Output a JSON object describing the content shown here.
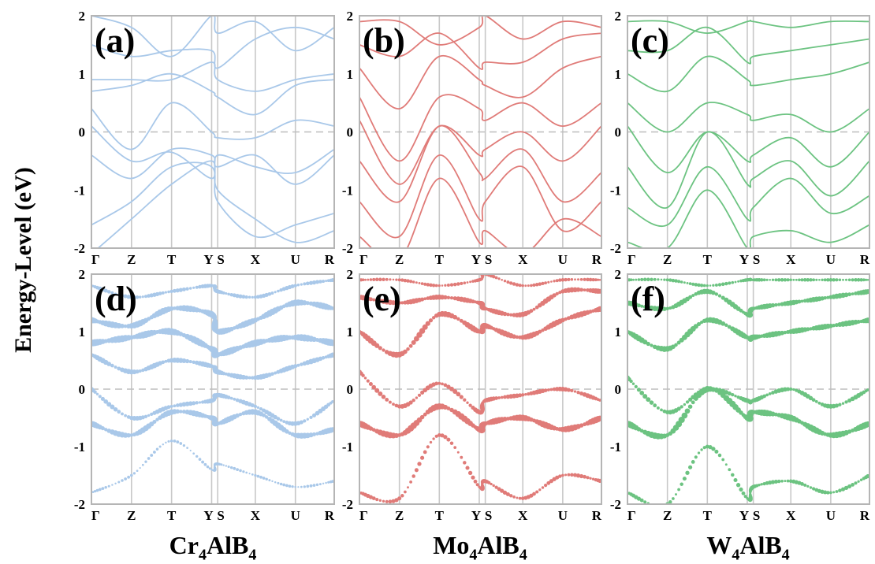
{
  "figure": {
    "ylabel": "Energy-Level (eV)"
  },
  "colors": {
    "Cr": "#a9c8e9",
    "Mo": "#e07b78",
    "W": "#6cc381",
    "fermi": "#bdbdbd",
    "kline": "#c8c8c8",
    "frame": "#b5b5b5"
  },
  "materials": [
    {
      "base": "Cr",
      "sub1": "4",
      "mid": "AlB",
      "sub2": "4"
    },
    {
      "base": "Mo",
      "sub1": "4",
      "mid": "AlB",
      "sub2": "4"
    },
    {
      "base": "W",
      "sub1": "4",
      "mid": "AlB",
      "sub2": "4"
    }
  ],
  "chart_data": [
    {
      "type": "line",
      "title": "(a)",
      "material": "Cr4AlB4",
      "style": "band",
      "color_key": "Cr",
      "x_ticks": [
        "Γ",
        "Z",
        "T",
        "Y",
        "S",
        "X",
        "U",
        "R"
      ],
      "y_ticks": [
        "2",
        "1",
        "0",
        "-1",
        "-2"
      ],
      "ylim": [
        -2,
        2
      ],
      "fermi_level": 0,
      "series": [
        {
          "values": [
            -2.1,
            -1.5,
            -0.9,
            -0.5,
            -1.0,
            -1.5,
            -1.9,
            -1.7
          ]
        },
        {
          "values": [
            -1.6,
            -1.2,
            -0.6,
            -0.6,
            -1.2,
            -1.8,
            -1.6,
            -1.4
          ]
        },
        {
          "values": [
            -0.4,
            -0.8,
            -0.3,
            -0.4,
            -0.6,
            -0.4,
            -0.9,
            -0.4
          ]
        },
        {
          "values": [
            0.1,
            -0.5,
            -0.35,
            -0.8,
            -0.4,
            -0.6,
            -0.7,
            -0.3
          ]
        },
        {
          "values": [
            0.4,
            -0.3,
            0.5,
            0.0,
            -0.1,
            -0.1,
            0.2,
            0.1
          ]
        },
        {
          "values": [
            0.7,
            0.8,
            1.0,
            0.7,
            0.6,
            0.3,
            0.8,
            0.9
          ]
        },
        {
          "values": [
            0.9,
            0.9,
            0.9,
            1.2,
            0.9,
            0.7,
            0.9,
            1.0
          ]
        },
        {
          "values": [
            1.5,
            1.3,
            1.4,
            1.4,
            1.1,
            1.6,
            1.8,
            1.6
          ]
        },
        {
          "values": [
            2.0,
            1.8,
            1.3,
            2.0,
            1.7,
            1.9,
            1.4,
            1.8
          ]
        }
      ]
    },
    {
      "type": "line",
      "title": "(b)",
      "material": "Mo4AlB4",
      "style": "band",
      "color_key": "Mo",
      "x_ticks": [
        "Γ",
        "Z",
        "T",
        "Y",
        "S",
        "X",
        "U",
        "R"
      ],
      "y_ticks": [
        "2",
        "1",
        "0",
        "-1",
        "-2"
      ],
      "ylim": [
        -2,
        2
      ],
      "fermi_level": 0,
      "series": [
        {
          "values": [
            -1.8,
            -2.2,
            -0.8,
            -1.9,
            -1.7,
            -2.1,
            -1.5,
            -1.8
          ]
        },
        {
          "values": [
            -1.2,
            -1.8,
            -0.4,
            -1.5,
            -1.2,
            -0.6,
            -1.7,
            -1.2
          ]
        },
        {
          "values": [
            -0.5,
            -1.2,
            0.1,
            -0.7,
            -0.8,
            -0.3,
            -1.2,
            -0.7
          ]
        },
        {
          "values": [
            0.2,
            -0.9,
            0.1,
            -0.4,
            -0.3,
            0.0,
            -0.5,
            0.1
          ]
        },
        {
          "values": [
            0.6,
            -0.5,
            0.6,
            0.4,
            0.2,
            0.5,
            0.1,
            0.5
          ]
        },
        {
          "values": [
            1.1,
            0.4,
            1.3,
            0.9,
            0.8,
            0.6,
            1.1,
            1.3
          ]
        },
        {
          "values": [
            1.5,
            1.3,
            1.7,
            1.1,
            1.2,
            1.2,
            1.6,
            1.7
          ]
        },
        {
          "values": [
            1.9,
            1.9,
            1.5,
            1.8,
            2.0,
            1.6,
            1.9,
            1.8
          ]
        }
      ]
    },
    {
      "type": "line",
      "title": "(c)",
      "material": "W4AlB4",
      "style": "band",
      "color_key": "W",
      "x_ticks": [
        "Γ",
        "Z",
        "T",
        "Y",
        "S",
        "X",
        "U",
        "R"
      ],
      "y_ticks": [
        "2",
        "1",
        "0",
        "-1",
        "-2"
      ],
      "ylim": [
        -2,
        2
      ],
      "fermi_level": 0,
      "series": [
        {
          "values": [
            -1.9,
            -2.0,
            -1.0,
            -2.0,
            -1.8,
            -1.7,
            -1.9,
            -1.6
          ]
        },
        {
          "values": [
            -1.3,
            -1.6,
            -0.6,
            -1.5,
            -1.3,
            -0.8,
            -1.4,
            -1.1
          ]
        },
        {
          "values": [
            -0.6,
            -1.3,
            0.0,
            -0.9,
            -0.8,
            -0.5,
            -1.1,
            -0.5
          ]
        },
        {
          "values": [
            0.1,
            -0.7,
            0.0,
            -0.5,
            -0.4,
            -0.1,
            -0.6,
            0.0
          ]
        },
        {
          "values": [
            0.5,
            0.0,
            0.5,
            0.3,
            0.2,
            0.3,
            0.0,
            0.4
          ]
        },
        {
          "values": [
            1.0,
            0.7,
            1.3,
            0.9,
            0.8,
            0.9,
            1.0,
            1.2
          ]
        },
        {
          "values": [
            1.4,
            1.4,
            1.8,
            1.2,
            1.3,
            1.4,
            1.5,
            1.6
          ]
        },
        {
          "values": [
            1.9,
            1.9,
            1.7,
            1.9,
            1.9,
            1.8,
            1.9,
            1.9
          ]
        }
      ]
    },
    {
      "type": "scatter",
      "title": "(d)",
      "material": "Cr4AlB4",
      "style": "fatband",
      "color_key": "Cr",
      "x_ticks": [
        "Γ",
        "Z",
        "T",
        "Y",
        "S",
        "X",
        "U",
        "R"
      ],
      "y_ticks": [
        "2",
        "1",
        "0",
        "-1",
        "-2"
      ],
      "ylim": [
        -2,
        2
      ],
      "fermi_level": 0,
      "series": [
        {
          "values": [
            -1.8,
            -1.5,
            -0.9,
            -1.4,
            -1.3,
            -1.5,
            -1.7,
            -1.6
          ],
          "weight": 0.2
        },
        {
          "values": [
            -0.6,
            -0.8,
            -0.4,
            -0.5,
            -0.6,
            -0.4,
            -0.8,
            -0.7
          ],
          "weight": 0.7
        },
        {
          "values": [
            0.0,
            -0.5,
            -0.3,
            -0.2,
            -0.1,
            -0.3,
            -0.6,
            -0.2
          ],
          "weight": 0.5
        },
        {
          "values": [
            0.6,
            0.3,
            0.5,
            0.4,
            0.3,
            0.2,
            0.4,
            0.6
          ],
          "weight": 0.6
        },
        {
          "values": [
            0.8,
            0.9,
            1.0,
            0.7,
            0.6,
            0.8,
            0.9,
            0.8
          ],
          "weight": 0.9
        },
        {
          "values": [
            1.2,
            1.1,
            1.4,
            1.3,
            1.0,
            1.2,
            1.5,
            1.4
          ],
          "weight": 0.8
        },
        {
          "values": [
            1.8,
            1.6,
            1.7,
            1.8,
            1.7,
            1.6,
            1.8,
            1.9
          ],
          "weight": 0.4
        }
      ]
    },
    {
      "type": "scatter",
      "title": "(e)",
      "material": "Mo4AlB4",
      "style": "fatband",
      "color_key": "Mo",
      "x_ticks": [
        "Γ",
        "Z",
        "T",
        "Y",
        "S",
        "X",
        "U",
        "R"
      ],
      "y_ticks": [
        "2",
        "1",
        "0",
        "-1",
        "-2"
      ],
      "ylim": [
        -2,
        2
      ],
      "fermi_level": 0,
      "series": [
        {
          "values": [
            -1.8,
            -1.9,
            -0.8,
            -1.7,
            -1.6,
            -1.9,
            -1.5,
            -1.6
          ],
          "weight": 0.4
        },
        {
          "values": [
            -0.6,
            -0.8,
            -0.3,
            -0.7,
            -0.6,
            -0.5,
            -0.7,
            -0.5
          ],
          "weight": 0.8
        },
        {
          "values": [
            0.3,
            -0.3,
            0.1,
            -0.4,
            -0.2,
            -0.1,
            0.0,
            -0.2
          ],
          "weight": 0.5
        },
        {
          "values": [
            1.0,
            0.6,
            1.3,
            1.0,
            1.1,
            0.9,
            1.2,
            1.4
          ],
          "weight": 0.7
        },
        {
          "values": [
            1.6,
            1.5,
            1.6,
            1.5,
            1.4,
            1.3,
            1.7,
            1.7
          ],
          "weight": 0.6
        },
        {
          "values": [
            1.9,
            1.9,
            1.8,
            1.9,
            2.0,
            1.8,
            1.9,
            1.9
          ],
          "weight": 0.3
        }
      ]
    },
    {
      "type": "scatter",
      "title": "(f)",
      "material": "W4AlB4",
      "style": "fatband",
      "color_key": "W",
      "x_ticks": [
        "Γ",
        "Z",
        "T",
        "Y",
        "S",
        "X",
        "U",
        "R"
      ],
      "y_ticks": [
        "2",
        "1",
        "0",
        "-1",
        "-2"
      ],
      "ylim": [
        -2,
        2
      ],
      "fermi_level": 0,
      "series": [
        {
          "values": [
            -1.8,
            -2.0,
            -1.0,
            -1.9,
            -1.7,
            -1.6,
            -1.8,
            -1.5
          ],
          "weight": 0.4
        },
        {
          "values": [
            -0.6,
            -0.8,
            0.0,
            -0.5,
            -0.4,
            -0.5,
            -0.8,
            -0.6
          ],
          "weight": 0.8
        },
        {
          "values": [
            0.2,
            -0.4,
            0.0,
            -0.2,
            -0.2,
            0.0,
            -0.3,
            0.0
          ],
          "weight": 0.5
        },
        {
          "values": [
            1.0,
            0.7,
            1.2,
            0.9,
            0.9,
            1.0,
            1.1,
            1.2
          ],
          "weight": 0.7
        },
        {
          "values": [
            1.5,
            1.4,
            1.7,
            1.3,
            1.4,
            1.5,
            1.6,
            1.7
          ],
          "weight": 0.6
        },
        {
          "values": [
            1.9,
            1.9,
            1.8,
            1.9,
            1.9,
            1.9,
            1.9,
            1.9
          ],
          "weight": 0.3
        }
      ]
    }
  ]
}
